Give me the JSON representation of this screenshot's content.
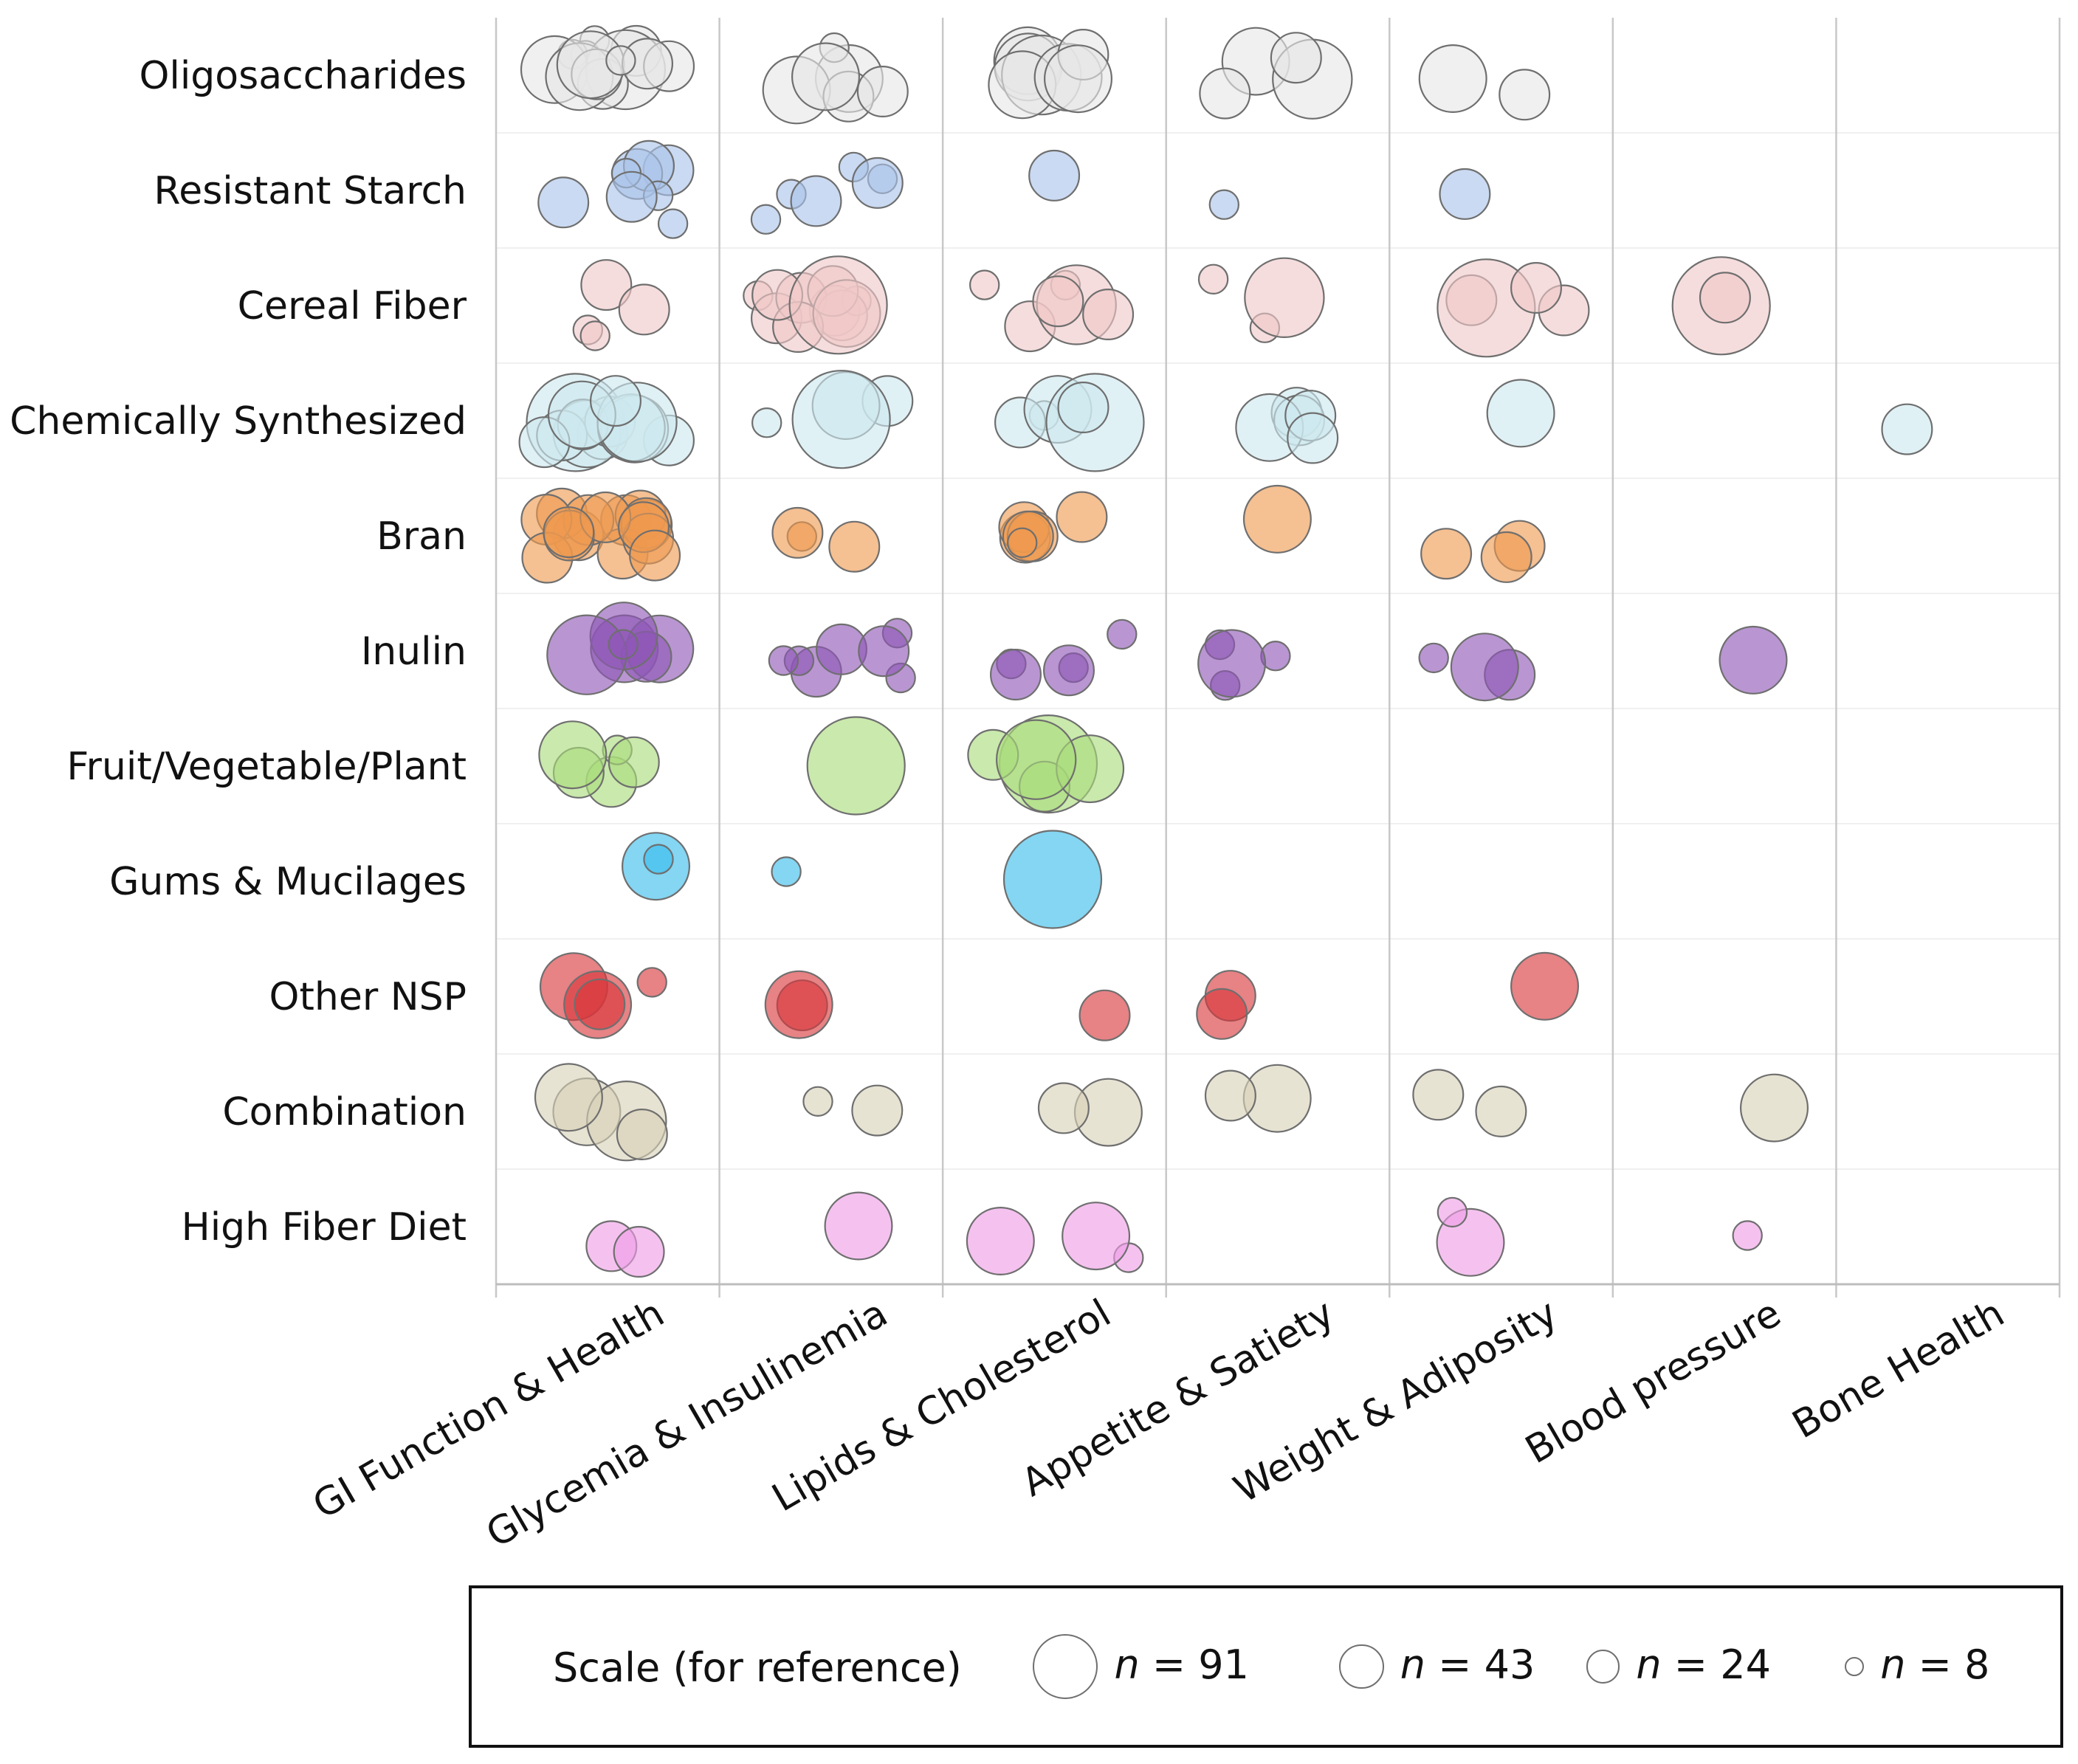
{
  "chart_data": {
    "type": "bubble-matrix",
    "title": "",
    "x_categories": [
      "GI Function & Health",
      "Glycemia & Insulinemia",
      "Lipids & Cholesterol",
      "Appetite & Satiety",
      "Weight & Adiposity",
      "Blood pressure",
      "Bone Health"
    ],
    "y_categories": [
      "Oligosaccharides",
      "Resistant Starch",
      "Cereal Fiber",
      "Chemically  Synthesized",
      "Bran",
      "Inulin",
      "Fruit/Vegetable/Plant",
      "Gums & Mucilages",
      "Other NSP",
      "Combination",
      "High Fiber Diet"
    ],
    "row_colors": [
      "#e6e6e6",
      "#a9c4ea",
      "#f0c8c8",
      "#cde9ef",
      "#ef9a4f",
      "#8e55b7",
      "#a9dc7a",
      "#38bdec",
      "#d9363a",
      "#d8d2b8",
      "#ef9de7"
    ],
    "n_unit": 91,
    "bubble_values_note": "n (number of subjects) per study; bubble area proportional to n",
    "cells": [
      {
        "row": 0,
        "col": 0,
        "n": [
          8,
          8,
          8,
          24,
          43,
          60,
          24,
          43,
          24,
          24,
          43,
          24,
          8
        ]
      },
      {
        "row": 0,
        "col": 1,
        "n": [
          43,
          43,
          24,
          8,
          24,
          43
        ]
      },
      {
        "row": 0,
        "col": 2,
        "n": [
          43,
          43,
          60,
          43,
          43,
          24,
          43
        ]
      },
      {
        "row": 0,
        "col": 3,
        "n": [
          43,
          60,
          24,
          24
        ]
      },
      {
        "row": 0,
        "col": 4,
        "n": [
          43,
          24
        ]
      },
      {
        "row": 1,
        "col": 0,
        "n": [
          24,
          24,
          24,
          8,
          24,
          8,
          8,
          24
        ]
      },
      {
        "row": 1,
        "col": 1,
        "n": [
          8,
          8,
          8,
          8,
          24,
          24
        ]
      },
      {
        "row": 1,
        "col": 2,
        "n": [
          24
        ]
      },
      {
        "row": 1,
        "col": 3,
        "n": [
          8
        ]
      },
      {
        "row": 1,
        "col": 4,
        "n": [
          24
        ]
      },
      {
        "row": 2,
        "col": 0,
        "n": [
          8,
          8,
          24,
          24
        ]
      },
      {
        "row": 2,
        "col": 1,
        "n": [
          8,
          24,
          24,
          24,
          8,
          24,
          24,
          24,
          43,
          24,
          91
        ]
      },
      {
        "row": 2,
        "col": 2,
        "n": [
          8,
          24,
          8,
          60,
          24,
          24
        ]
      },
      {
        "row": 2,
        "col": 3,
        "n": [
          8,
          8,
          60
        ]
      },
      {
        "row": 2,
        "col": 4,
        "n": [
          24,
          24,
          91,
          24
        ]
      },
      {
        "row": 2,
        "col": 5,
        "n": [
          91,
          24
        ]
      },
      {
        "row": 3,
        "col": 0,
        "n": [
          91,
          24,
          24,
          43,
          24,
          24,
          43,
          24,
          24,
          43,
          60,
          43,
          24
        ]
      },
      {
        "row": 3,
        "col": 1,
        "n": [
          24,
          43,
          91,
          8
        ]
      },
      {
        "row": 3,
        "col": 2,
        "n": [
          8,
          24,
          43,
          91,
          24
        ]
      },
      {
        "row": 3,
        "col": 3,
        "n": [
          24,
          24,
          43,
          24,
          24
        ]
      },
      {
        "row": 3,
        "col": 4,
        "n": [
          43
        ]
      },
      {
        "row": 3,
        "col": 6,
        "n": [
          24
        ]
      },
      {
        "row": 4,
        "col": 0,
        "n": [
          24,
          24,
          24,
          24,
          24,
          24,
          24,
          24,
          24,
          24,
          24,
          24,
          24,
          24,
          24,
          24
        ]
      },
      {
        "row": 4,
        "col": 1,
        "n": [
          8,
          24,
          24
        ]
      },
      {
        "row": 4,
        "col": 2,
        "n": [
          24,
          24,
          24,
          24,
          24,
          8
        ]
      },
      {
        "row": 4,
        "col": 3,
        "n": [
          43
        ]
      },
      {
        "row": 4,
        "col": 4,
        "n": [
          24,
          24,
          24
        ]
      },
      {
        "row": 5,
        "col": 0,
        "n": [
          43,
          43,
          24,
          43,
          60,
          8
        ]
      },
      {
        "row": 5,
        "col": 1,
        "n": [
          8,
          24,
          8,
          8,
          24,
          8,
          24
        ]
      },
      {
        "row": 5,
        "col": 2,
        "n": [
          8,
          8,
          24,
          24,
          8
        ]
      },
      {
        "row": 5,
        "col": 3,
        "n": [
          8,
          8,
          8,
          43
        ]
      },
      {
        "row": 5,
        "col": 4,
        "n": [
          8,
          24,
          43
        ]
      },
      {
        "row": 5,
        "col": 5,
        "n": [
          43
        ]
      },
      {
        "row": 6,
        "col": 0,
        "n": [
          24,
          24,
          8,
          24,
          43
        ]
      },
      {
        "row": 6,
        "col": 1,
        "n": [
          91
        ]
      },
      {
        "row": 6,
        "col": 2,
        "n": [
          91,
          24,
          43,
          24,
          60
        ]
      },
      {
        "row": 7,
        "col": 0,
        "n": [
          43,
          8
        ]
      },
      {
        "row": 7,
        "col": 1,
        "n": [
          8
        ]
      },
      {
        "row": 7,
        "col": 2,
        "n": [
          91
        ]
      },
      {
        "row": 8,
        "col": 0,
        "n": [
          43,
          43,
          8,
          24
        ]
      },
      {
        "row": 8,
        "col": 1,
        "n": [
          24,
          43
        ]
      },
      {
        "row": 8,
        "col": 2,
        "n": [
          24
        ]
      },
      {
        "row": 8,
        "col": 3,
        "n": [
          24,
          24
        ]
      },
      {
        "row": 8,
        "col": 4,
        "n": [
          43
        ]
      },
      {
        "row": 9,
        "col": 0,
        "n": [
          43,
          60,
          24,
          43
        ]
      },
      {
        "row": 9,
        "col": 1,
        "n": [
          8,
          24
        ]
      },
      {
        "row": 9,
        "col": 2,
        "n": [
          43,
          24
        ]
      },
      {
        "row": 9,
        "col": 3,
        "n": [
          43,
          24
        ]
      },
      {
        "row": 9,
        "col": 4,
        "n": [
          24,
          24
        ]
      },
      {
        "row": 9,
        "col": 5,
        "n": [
          43
        ]
      },
      {
        "row": 10,
        "col": 0,
        "n": [
          24,
          24
        ]
      },
      {
        "row": 10,
        "col": 1,
        "n": [
          43
        ]
      },
      {
        "row": 10,
        "col": 2,
        "n": [
          8,
          43,
          43
        ]
      },
      {
        "row": 10,
        "col": 4,
        "n": [
          43,
          8
        ]
      },
      {
        "row": 10,
        "col": 5,
        "n": [
          8
        ]
      }
    ],
    "legend": {
      "title": "Scale (for reference)",
      "items": [
        {
          "n": 91,
          "label": " = 91"
        },
        {
          "n": 43,
          "label": " = 43"
        },
        {
          "n": 24,
          "label": " = 24"
        },
        {
          "n": 8,
          "label": " = 8"
        }
      ],
      "n_symbol": "n"
    }
  }
}
